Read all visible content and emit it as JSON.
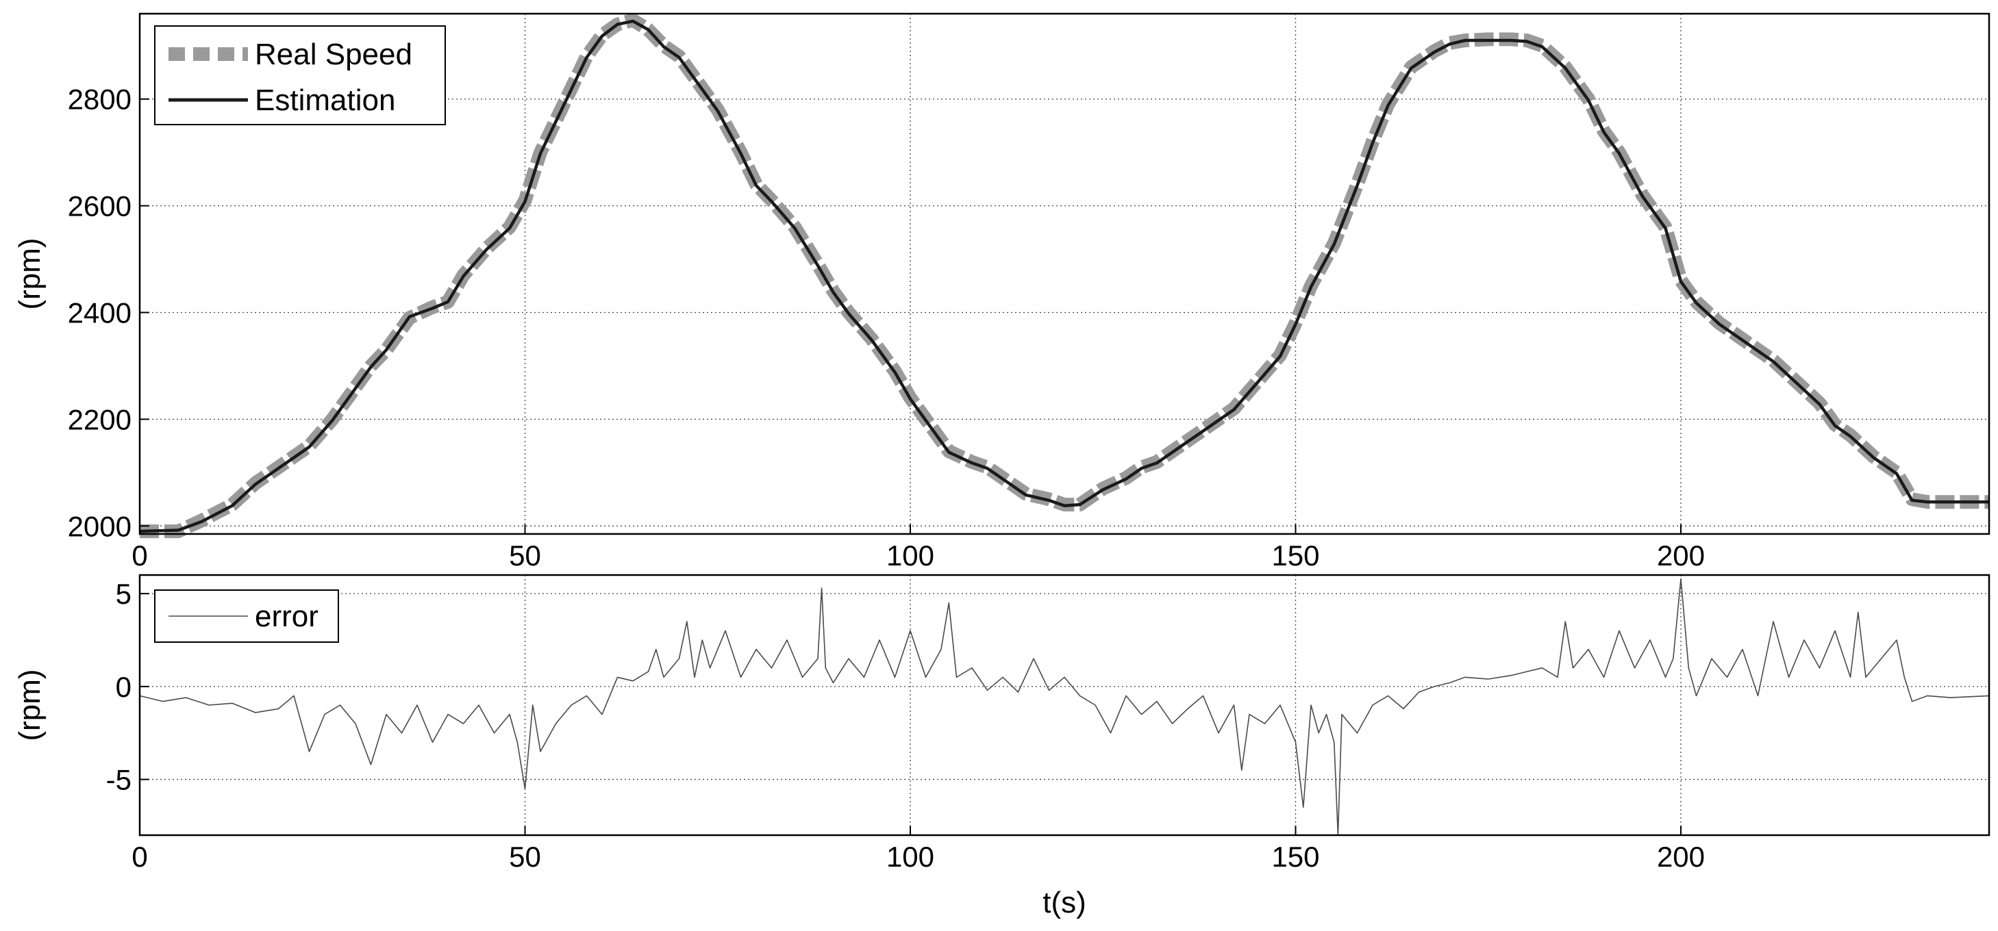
{
  "chart_data": [
    {
      "type": "line",
      "ylabel": "(rpm)",
      "xlabel": "",
      "xlim": [
        0,
        240
      ],
      "ylim": [
        1985,
        2960
      ],
      "xticks": [
        0,
        50,
        100,
        150,
        200
      ],
      "yticks": [
        2000,
        2200,
        2400,
        2600,
        2800
      ],
      "grid": true,
      "legend_position": "top-left",
      "series": [
        {
          "name": "Real Speed",
          "style": "dashed thick",
          "color": "#9a9a9a",
          "x": [
            0,
            5,
            8,
            12,
            15,
            18,
            22,
            25,
            28,
            30,
            32,
            35,
            38,
            40,
            42,
            45,
            48,
            50,
            52,
            55,
            58,
            60,
            62,
            64,
            66,
            68,
            70,
            72,
            75,
            78,
            80,
            82,
            85,
            88,
            90,
            92,
            95,
            98,
            100,
            103,
            105,
            108,
            110,
            112,
            115,
            118,
            120,
            122,
            125,
            128,
            130,
            132,
            135,
            138,
            140,
            142,
            145,
            148,
            150,
            152,
            155,
            158,
            160,
            162,
            165,
            168,
            170,
            172,
            175,
            178,
            180,
            182,
            185,
            188,
            190,
            192,
            195,
            198,
            200,
            202,
            205,
            208,
            210,
            212,
            215,
            218,
            220,
            222,
            225,
            228,
            230,
            232,
            235,
            240
          ],
          "y": [
            1990,
            1990,
            2010,
            2040,
            2080,
            2110,
            2150,
            2200,
            2260,
            2300,
            2330,
            2390,
            2410,
            2420,
            2470,
            2520,
            2560,
            2610,
            2700,
            2790,
            2880,
            2920,
            2940,
            2948,
            2930,
            2900,
            2880,
            2840,
            2780,
            2700,
            2640,
            2610,
            2560,
            2490,
            2440,
            2400,
            2350,
            2290,
            2240,
            2180,
            2140,
            2120,
            2110,
            2090,
            2060,
            2050,
            2040,
            2040,
            2070,
            2090,
            2110,
            2120,
            2150,
            2180,
            2200,
            2220,
            2270,
            2320,
            2380,
            2450,
            2530,
            2640,
            2720,
            2790,
            2860,
            2890,
            2905,
            2910,
            2912,
            2912,
            2910,
            2900,
            2860,
            2800,
            2740,
            2700,
            2620,
            2560,
            2460,
            2420,
            2380,
            2350,
            2330,
            2310,
            2270,
            2230,
            2190,
            2170,
            2130,
            2100,
            2050,
            2045,
            2045,
            2045
          ]
        },
        {
          "name": "Estimation",
          "style": "solid",
          "color": "#1a1a1a",
          "x": [
            0,
            5,
            8,
            12,
            15,
            18,
            22,
            25,
            28,
            30,
            32,
            35,
            38,
            40,
            42,
            45,
            48,
            50,
            52,
            55,
            58,
            60,
            62,
            64,
            66,
            68,
            70,
            72,
            75,
            78,
            80,
            82,
            85,
            88,
            90,
            92,
            95,
            98,
            100,
            103,
            105,
            108,
            110,
            112,
            115,
            118,
            120,
            122,
            125,
            128,
            130,
            132,
            135,
            138,
            140,
            142,
            145,
            148,
            150,
            152,
            155,
            158,
            160,
            162,
            165,
            168,
            170,
            172,
            175,
            178,
            180,
            182,
            185,
            188,
            190,
            192,
            195,
            198,
            200,
            202,
            205,
            208,
            210,
            212,
            215,
            218,
            220,
            222,
            225,
            228,
            230,
            232,
            235,
            240
          ],
          "y": [
            1990,
            1992,
            2008,
            2038,
            2078,
            2108,
            2148,
            2198,
            2258,
            2298,
            2330,
            2392,
            2408,
            2420,
            2468,
            2518,
            2558,
            2608,
            2698,
            2788,
            2878,
            2918,
            2940,
            2946,
            2930,
            2898,
            2878,
            2838,
            2778,
            2698,
            2638,
            2608,
            2558,
            2488,
            2438,
            2398,
            2348,
            2288,
            2238,
            2178,
            2138,
            2118,
            2108,
            2088,
            2058,
            2048,
            2038,
            2040,
            2068,
            2088,
            2108,
            2118,
            2148,
            2178,
            2198,
            2218,
            2268,
            2318,
            2378,
            2448,
            2528,
            2638,
            2718,
            2788,
            2858,
            2888,
            2903,
            2910,
            2910,
            2910,
            2908,
            2898,
            2858,
            2798,
            2738,
            2698,
            2618,
            2558,
            2458,
            2418,
            2378,
            2348,
            2328,
            2308,
            2268,
            2228,
            2188,
            2168,
            2128,
            2098,
            2048,
            2045,
            2045,
            2045
          ]
        }
      ]
    },
    {
      "type": "line",
      "ylabel": "(rpm)",
      "xlabel": "t(s)",
      "xlim": [
        0,
        240
      ],
      "ylim": [
        -8,
        6
      ],
      "xticks": [
        0,
        50,
        100,
        150,
        200
      ],
      "yticks": [
        -5,
        0,
        5
      ],
      "grid": true,
      "legend_position": "top-left",
      "series": [
        {
          "name": "error",
          "style": "solid thin",
          "color": "#4a4a4a",
          "x": [
            0,
            3,
            6,
            9,
            12,
            15,
            18,
            20,
            21,
            22,
            24,
            26,
            28,
            30,
            32,
            34,
            36,
            38,
            40,
            42,
            44,
            46,
            48,
            49,
            50,
            51,
            52,
            54,
            56,
            58,
            60,
            62,
            64,
            66,
            67,
            68,
            70,
            71,
            72,
            73,
            74,
            76,
            78,
            80,
            82,
            84,
            86,
            88,
            88.5,
            89,
            90,
            92,
            94,
            96,
            98,
            100,
            102,
            104,
            105,
            106,
            108,
            110,
            112,
            114,
            116,
            118,
            120,
            122,
            124,
            126,
            128,
            130,
            132,
            134,
            136,
            138,
            140,
            142,
            143,
            144,
            146,
            148,
            150,
            151,
            152,
            153,
            154,
            155,
            155.5,
            156,
            158,
            160,
            162,
            164,
            166,
            168,
            170,
            172,
            175,
            178,
            180,
            182,
            184,
            185,
            186,
            188,
            190,
            192,
            194,
            196,
            198,
            199,
            200,
            201,
            202,
            204,
            206,
            208,
            210,
            212,
            214,
            216,
            218,
            220,
            222,
            223,
            224,
            226,
            228,
            229,
            230,
            232,
            235,
            240
          ],
          "y": [
            -0.5,
            -0.8,
            -0.6,
            -1.0,
            -0.9,
            -1.4,
            -1.2,
            -0.5,
            -2.0,
            -3.5,
            -1.5,
            -1.0,
            -2.0,
            -4.2,
            -1.5,
            -2.5,
            -1.0,
            -3.0,
            -1.5,
            -2.0,
            -1.0,
            -2.5,
            -1.5,
            -3.0,
            -5.5,
            -1.0,
            -3.5,
            -2.0,
            -1.0,
            -0.5,
            -1.5,
            0.5,
            0.3,
            0.8,
            2.0,
            0.5,
            1.5,
            3.5,
            0.5,
            2.5,
            1.0,
            3.0,
            0.5,
            2.0,
            1.0,
            2.5,
            0.5,
            1.5,
            5.3,
            1.0,
            0.2,
            1.5,
            0.5,
            2.5,
            0.5,
            3.0,
            0.5,
            2.0,
            4.5,
            0.5,
            1.0,
            -0.2,
            0.5,
            -0.3,
            1.5,
            -0.2,
            0.5,
            -0.5,
            -1.0,
            -2.5,
            -0.5,
            -1.5,
            -0.8,
            -2.0,
            -1.2,
            -0.5,
            -2.5,
            -1.0,
            -4.5,
            -1.5,
            -2.0,
            -1.0,
            -3.0,
            -6.5,
            -1.0,
            -2.5,
            -1.5,
            -3.0,
            -8.0,
            -1.5,
            -2.5,
            -1.0,
            -0.5,
            -1.2,
            -0.3,
            0.0,
            0.2,
            0.5,
            0.4,
            0.6,
            0.8,
            1.0,
            0.5,
            3.5,
            1.0,
            2.0,
            0.5,
            3.0,
            1.0,
            2.5,
            0.5,
            1.5,
            5.8,
            1.0,
            -0.5,
            1.5,
            0.5,
            2.0,
            -0.5,
            3.5,
            0.5,
            2.5,
            1.0,
            3.0,
            0.5,
            4.0,
            0.5,
            1.5,
            2.5,
            0.5,
            -0.8,
            -0.5,
            -0.6,
            -0.5
          ]
        }
      ]
    }
  ],
  "legend": {
    "top": [
      {
        "label": "Real Speed"
      },
      {
        "label": "Estimation"
      }
    ],
    "bottom": [
      {
        "label": "error"
      }
    ]
  }
}
